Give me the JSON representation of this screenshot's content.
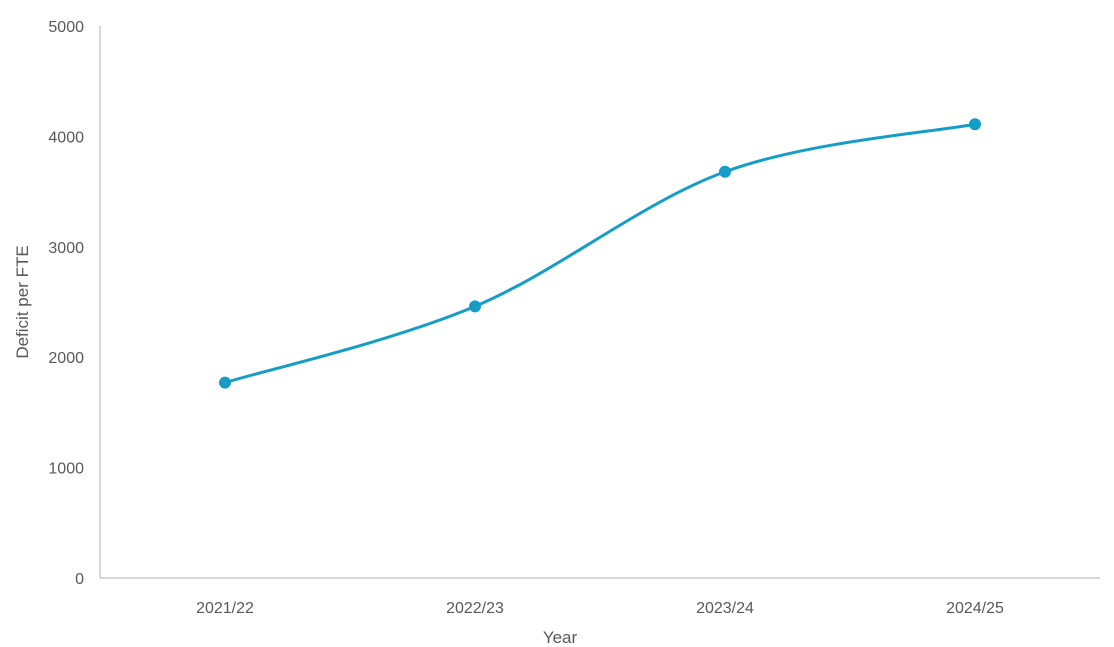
{
  "chart_data": {
    "type": "line",
    "title": "",
    "xlabel": "Year",
    "ylabel": "Deficit per FTE",
    "categories": [
      "2021/22",
      "2022/23",
      "2023/24",
      "2024/25"
    ],
    "series": [
      {
        "values": [
          1770,
          2460,
          3680,
          4110
        ],
        "color": "#159dc8"
      }
    ],
    "ylim": [
      0,
      5000
    ],
    "yticks": [
      "0",
      "1000",
      "2000",
      "3000",
      "4000",
      "5000"
    ],
    "grid": false,
    "smooth": true,
    "markers": true,
    "legend": "none"
  }
}
